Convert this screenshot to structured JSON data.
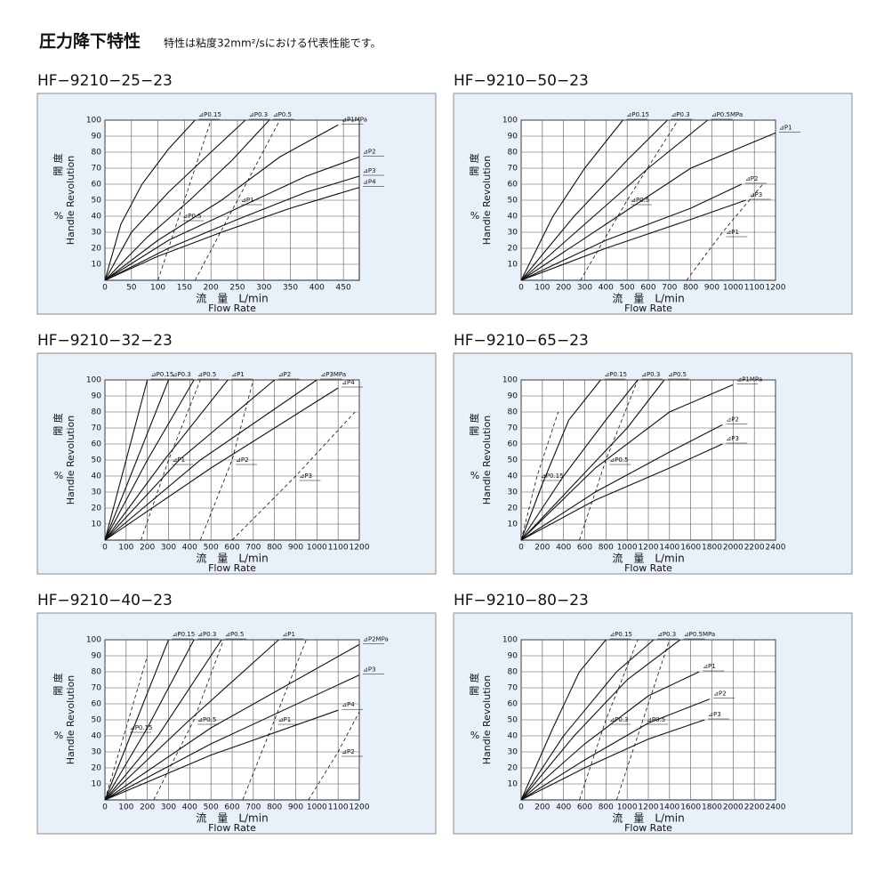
{
  "header": {
    "title": "圧力降下特性",
    "subtitle": "特性は粘度32mm²/sにおける代表性能です。"
  },
  "chart_data": [
    {
      "type": "line",
      "title": "HF−9210−25−23",
      "xlabel": "流　量　L/min",
      "xlabel_en": "Flow Rate",
      "ylabel_ja": "開 度",
      "ylabel_en": "Handle Revolution",
      "ylabel_unit": "%",
      "xlim": [
        0,
        480
      ],
      "xticks": [
        0,
        50,
        100,
        150,
        200,
        250,
        300,
        350,
        400,
        450
      ],
      "ylim": [
        0,
        100
      ],
      "yticks": [
        10,
        20,
        30,
        40,
        50,
        60,
        70,
        80,
        90,
        100
      ],
      "grid": true,
      "color": "#111111",
      "series": [
        {
          "name": "⊿P0.15",
          "style": "solid",
          "x": [
            0,
            30,
            70,
            120,
            170
          ],
          "values": [
            0,
            35,
            60,
            82,
            100
          ]
        },
        {
          "name": "⊿P0.3",
          "style": "solid",
          "x": [
            0,
            50,
            120,
            200,
            265
          ],
          "values": [
            0,
            30,
            55,
            80,
            100
          ]
        },
        {
          "name": "⊿P0.5",
          "style": "solid",
          "x": [
            0,
            80,
            160,
            240,
            310
          ],
          "values": [
            0,
            27,
            50,
            75,
            100
          ]
        },
        {
          "name": "⊿P1MPa",
          "style": "solid",
          "x": [
            0,
            100,
            220,
            330,
            440
          ],
          "values": [
            0,
            25,
            50,
            77,
            97
          ]
        },
        {
          "name": "⊿P2",
          "style": "solid",
          "x": [
            0,
            120,
            250,
            380,
            480
          ],
          "values": [
            0,
            25,
            45,
            65,
            77
          ]
        },
        {
          "name": "⊿P3",
          "style": "solid",
          "x": [
            0,
            120,
            250,
            380,
            480
          ],
          "values": [
            0,
            20,
            38,
            55,
            65
          ]
        },
        {
          "name": "⊿P4",
          "style": "solid",
          "x": [
            0,
            100,
            220,
            350,
            480
          ],
          "values": [
            0,
            15,
            30,
            45,
            58
          ]
        },
        {
          "name": "⊿P0.5",
          "style": "dashed",
          "x": [
            100,
            140,
            180,
            200
          ],
          "values": [
            0,
            40,
            80,
            100
          ]
        },
        {
          "name": "⊿P1",
          "style": "dashed",
          "x": [
            170,
            250,
            330
          ],
          "values": [
            0,
            50,
            100
          ]
        }
      ]
    },
    {
      "type": "line",
      "title": "HF−9210−50−23",
      "xlabel": "流　量　L/min",
      "xlabel_en": "Flow Rate",
      "ylabel_ja": "開 度",
      "ylabel_en": "Handle Revolution",
      "ylabel_unit": "%",
      "xlim": [
        0,
        1200
      ],
      "xticks": [
        0,
        100,
        200,
        300,
        400,
        500,
        600,
        700,
        800,
        900,
        1000,
        1100,
        1200
      ],
      "ylim": [
        0,
        100
      ],
      "yticks": [
        10,
        20,
        30,
        40,
        50,
        60,
        70,
        80,
        90,
        100
      ],
      "grid": true,
      "color": "#111111",
      "series": [
        {
          "name": "⊿P0.15",
          "style": "solid",
          "x": [
            0,
            150,
            300,
            480
          ],
          "values": [
            0,
            40,
            70,
            100
          ]
        },
        {
          "name": "⊿P0.3",
          "style": "solid",
          "x": [
            0,
            250,
            500,
            690
          ],
          "values": [
            0,
            40,
            75,
            100
          ]
        },
        {
          "name": "⊿P0.5MPa",
          "style": "solid",
          "x": [
            0,
            300,
            600,
            880
          ],
          "values": [
            0,
            35,
            70,
            100
          ]
        },
        {
          "name": "⊿P1",
          "style": "solid",
          "x": [
            0,
            400,
            800,
            1200
          ],
          "values": [
            0,
            35,
            70,
            92
          ]
        },
        {
          "name": "⊿P2",
          "style": "solid",
          "x": [
            0,
            400,
            800,
            1040
          ],
          "values": [
            0,
            25,
            45,
            60
          ]
        },
        {
          "name": "⊿P3",
          "style": "solid",
          "x": [
            0,
            400,
            800,
            1060
          ],
          "values": [
            0,
            20,
            38,
            50
          ]
        },
        {
          "name": "⊿P0.5",
          "style": "dashed",
          "x": [
            280,
            500,
            740
          ],
          "values": [
            0,
            50,
            100
          ]
        },
        {
          "name": "⊿P1",
          "style": "dashed",
          "x": [
            780,
            950,
            1140
          ],
          "values": [
            0,
            30,
            60
          ]
        }
      ]
    },
    {
      "type": "line",
      "title": "HF−9210−32−23",
      "xlabel": "流　量　L/min",
      "xlabel_en": "Flow Rate",
      "ylabel_ja": "開 度",
      "ylabel_en": "Handle Revolution",
      "ylabel_unit": "%",
      "xlim": [
        0,
        1200
      ],
      "xticks": [
        0,
        100,
        200,
        300,
        400,
        500,
        600,
        700,
        800,
        900,
        1000,
        1100,
        1200
      ],
      "ylim": [
        0,
        100
      ],
      "yticks": [
        10,
        20,
        30,
        40,
        50,
        60,
        70,
        80,
        90,
        100
      ],
      "grid": true,
      "color": "#111111",
      "series": [
        {
          "name": "⊿P0.15",
          "style": "solid",
          "x": [
            0,
            100,
            200
          ],
          "values": [
            0,
            50,
            100
          ]
        },
        {
          "name": "⊿P0.3",
          "style": "solid",
          "x": [
            0,
            150,
            300
          ],
          "values": [
            0,
            50,
            100
          ]
        },
        {
          "name": "⊿P0.5",
          "style": "solid",
          "x": [
            0,
            200,
            420
          ],
          "values": [
            0,
            50,
            100
          ]
        },
        {
          "name": "⊿P1",
          "style": "solid",
          "x": [
            0,
            280,
            580
          ],
          "values": [
            0,
            50,
            100
          ]
        },
        {
          "name": "⊿P2",
          "style": "solid",
          "x": [
            0,
            350,
            800
          ],
          "values": [
            0,
            50,
            100
          ]
        },
        {
          "name": "⊿P3MPa",
          "style": "solid",
          "x": [
            0,
            450,
            1000
          ],
          "values": [
            0,
            50,
            100
          ]
        },
        {
          "name": "⊿P4",
          "style": "solid",
          "x": [
            0,
            500,
            1100
          ],
          "values": [
            0,
            45,
            95
          ]
        },
        {
          "name": "⊿P1",
          "style": "dashed",
          "x": [
            170,
            300,
            450
          ],
          "values": [
            0,
            50,
            100
          ]
        },
        {
          "name": "⊿P2",
          "style": "dashed",
          "x": [
            450,
            600,
            700
          ],
          "values": [
            0,
            50,
            100
          ]
        },
        {
          "name": "⊿P3",
          "style": "dashed",
          "x": [
            600,
            900,
            1180
          ],
          "values": [
            0,
            40,
            80
          ]
        }
      ]
    },
    {
      "type": "line",
      "title": "HF−9210−65−23",
      "xlabel": "流　量　L/min",
      "xlabel_en": "Flow Rate",
      "ylabel_ja": "開 度",
      "ylabel_en": "Handle Revolution",
      "ylabel_unit": "%",
      "xlim": [
        0,
        2400
      ],
      "xticks": [
        0,
        200,
        400,
        600,
        800,
        1000,
        1200,
        1400,
        1600,
        1800,
        2000,
        2200,
        2400
      ],
      "ylim": [
        0,
        100
      ],
      "yticks": [
        10,
        20,
        30,
        40,
        50,
        60,
        70,
        80,
        90,
        100
      ],
      "grid": true,
      "color": "#111111",
      "series": [
        {
          "name": "⊿P0.15",
          "style": "solid",
          "x": [
            0,
            200,
            450,
            750
          ],
          "values": [
            0,
            35,
            75,
            100
          ]
        },
        {
          "name": "⊿P0.3",
          "style": "solid",
          "x": [
            0,
            400,
            800,
            1100
          ],
          "values": [
            0,
            40,
            75,
            100
          ]
        },
        {
          "name": "⊿P0.5",
          "style": "solid",
          "x": [
            0,
            500,
            1000,
            1350
          ],
          "values": [
            0,
            35,
            70,
            100
          ]
        },
        {
          "name": "⊿P1MPa",
          "style": "solid",
          "x": [
            0,
            700,
            1400,
            2000
          ],
          "values": [
            0,
            45,
            80,
            97
          ]
        },
        {
          "name": "⊿P2",
          "style": "solid",
          "x": [
            0,
            700,
            1400,
            1900
          ],
          "values": [
            0,
            30,
            55,
            72
          ]
        },
        {
          "name": "⊿P3",
          "style": "solid",
          "x": [
            0,
            700,
            1400,
            1900
          ],
          "values": [
            0,
            25,
            45,
            60
          ]
        },
        {
          "name": "⊿P0.15",
          "style": "dashed",
          "x": [
            0,
            150,
            350
          ],
          "values": [
            0,
            40,
            80
          ]
        },
        {
          "name": "⊿P0.5",
          "style": "dashed",
          "x": [
            550,
            800,
            1100
          ],
          "values": [
            0,
            50,
            100
          ]
        }
      ]
    },
    {
      "type": "line",
      "title": "HF−9210−40−23",
      "xlabel": "流　量　L/min",
      "xlabel_en": "Flow Rate",
      "ylabel_ja": "開 度",
      "ylabel_en": "Handle Revolution",
      "ylabel_unit": "%",
      "xlim": [
        0,
        1200
      ],
      "xticks": [
        0,
        100,
        200,
        300,
        400,
        500,
        600,
        700,
        800,
        900,
        1000,
        1100,
        1200
      ],
      "ylim": [
        0,
        100
      ],
      "yticks": [
        10,
        20,
        30,
        40,
        50,
        60,
        70,
        80,
        90,
        100
      ],
      "grid": true,
      "color": "#111111",
      "series": [
        {
          "name": "⊿P0.15",
          "style": "solid",
          "x": [
            0,
            120,
            300
          ],
          "values": [
            0,
            40,
            100
          ]
        },
        {
          "name": "⊿P0.3",
          "style": "solid",
          "x": [
            0,
            200,
            420
          ],
          "values": [
            0,
            45,
            100
          ]
        },
        {
          "name": "⊿P0.5",
          "style": "solid",
          "x": [
            0,
            250,
            550
          ],
          "values": [
            0,
            40,
            100
          ]
        },
        {
          "name": "⊿P1",
          "style": "solid",
          "x": [
            0,
            400,
            820
          ],
          "values": [
            0,
            50,
            100
          ]
        },
        {
          "name": "⊿P2MPa",
          "style": "solid",
          "x": [
            0,
            500,
            1200
          ],
          "values": [
            0,
            45,
            97
          ]
        },
        {
          "name": "⊿P3",
          "style": "solid",
          "x": [
            0,
            500,
            1200
          ],
          "values": [
            0,
            35,
            78
          ]
        },
        {
          "name": "⊿P4",
          "style": "solid",
          "x": [
            0,
            500,
            1100
          ],
          "values": [
            0,
            28,
            56
          ]
        },
        {
          "name": "⊿P0.15",
          "style": "dashed",
          "x": [
            0,
            100,
            200
          ],
          "values": [
            0,
            45,
            90
          ]
        },
        {
          "name": "⊿P0.5",
          "style": "dashed",
          "x": [
            230,
            420,
            560
          ],
          "values": [
            0,
            50,
            100
          ]
        },
        {
          "name": "⊿P1",
          "style": "dashed",
          "x": [
            650,
            800,
            950
          ],
          "values": [
            0,
            50,
            100
          ]
        },
        {
          "name": "⊿P2",
          "style": "dashed",
          "x": [
            960,
            1100,
            1200
          ],
          "values": [
            0,
            30,
            55
          ]
        }
      ]
    },
    {
      "type": "line",
      "title": "HF−9210−80−23",
      "xlabel": "流　量　L/min",
      "xlabel_en": "Flow Rate",
      "ylabel_ja": "開 度",
      "ylabel_en": "Handle Revolution",
      "ylabel_unit": "%",
      "xlim": [
        0,
        2400
      ],
      "xticks": [
        0,
        200,
        400,
        600,
        800,
        1000,
        1200,
        1400,
        1600,
        1800,
        2000,
        2200,
        2400
      ],
      "ylim": [
        0,
        100
      ],
      "yticks": [
        10,
        20,
        30,
        40,
        50,
        60,
        70,
        80,
        90,
        100
      ],
      "grid": true,
      "color": "#111111",
      "series": [
        {
          "name": "⊿P0.15",
          "style": "solid",
          "x": [
            0,
            300,
            550,
            800
          ],
          "values": [
            0,
            45,
            80,
            100
          ]
        },
        {
          "name": "⊿P0.3",
          "style": "solid",
          "x": [
            0,
            400,
            900,
            1250
          ],
          "values": [
            0,
            40,
            80,
            100
          ]
        },
        {
          "name": "⊿P0.5MPa",
          "style": "solid",
          "x": [
            0,
            500,
            1000,
            1500
          ],
          "values": [
            0,
            40,
            75,
            100
          ]
        },
        {
          "name": "⊿P1",
          "style": "solid",
          "x": [
            0,
            600,
            1200,
            1680
          ],
          "values": [
            0,
            35,
            65,
            80
          ]
        },
        {
          "name": "⊿P2",
          "style": "solid",
          "x": [
            0,
            600,
            1200,
            1780
          ],
          "values": [
            0,
            25,
            48,
            63
          ]
        },
        {
          "name": "⊿P3",
          "style": "solid",
          "x": [
            0,
            600,
            1200,
            1730
          ],
          "values": [
            0,
            20,
            38,
            50
          ]
        },
        {
          "name": "⊿P0.3",
          "style": "dashed",
          "x": [
            550,
            800,
            1100
          ],
          "values": [
            0,
            50,
            100
          ]
        },
        {
          "name": "⊿P0.5",
          "style": "dashed",
          "x": [
            900,
            1150,
            1400
          ],
          "values": [
            0,
            50,
            100
          ]
        }
      ]
    }
  ]
}
